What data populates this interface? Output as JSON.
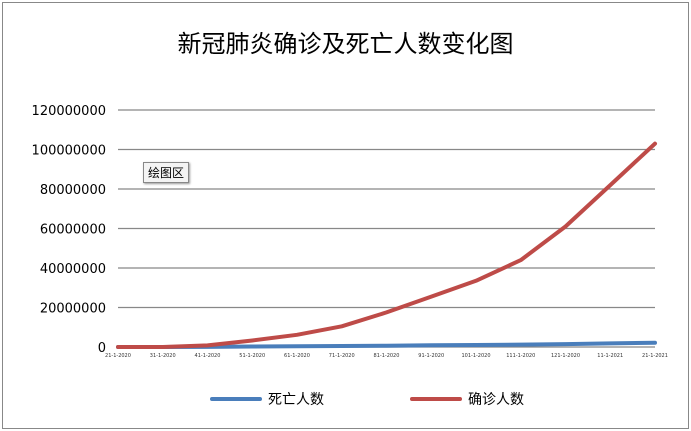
{
  "chart_data": {
    "type": "line",
    "title": "新冠肺炎确诊及死亡人数变化图",
    "categories": [
      "21-1-2020",
      "31-1-2020",
      "41-1-2020",
      "51-1-2020",
      "61-1-2020",
      "71-1-2020",
      "81-1-2020",
      "91-1-2020",
      "101-1-2020",
      "111-1-2020",
      "121-1-2020",
      "11-1-2021",
      "21-1-2021"
    ],
    "ylim": [
      0,
      120000000
    ],
    "yticks": [
      0,
      20000000,
      40000000,
      60000000,
      80000000,
      100000000,
      120000000
    ],
    "grid": true,
    "legend": "bottom",
    "series": [
      {
        "name": "死亡人数",
        "color": "#4a7ebb",
        "values": [
          0,
          200,
          40000,
          230000,
          370000,
          510000,
          680000,
          850000,
          1010000,
          1190000,
          1460000,
          1800000,
          2200000
        ]
      },
      {
        "name": "确诊人数",
        "color": "#be4b48",
        "values": [
          0,
          10000,
          800000,
          3300000,
          6200000,
          10500000,
          17500000,
          25500000,
          33500000,
          44000000,
          61000000,
          82000000,
          103000000
        ]
      }
    ]
  },
  "plot_area_label": "绘图区"
}
